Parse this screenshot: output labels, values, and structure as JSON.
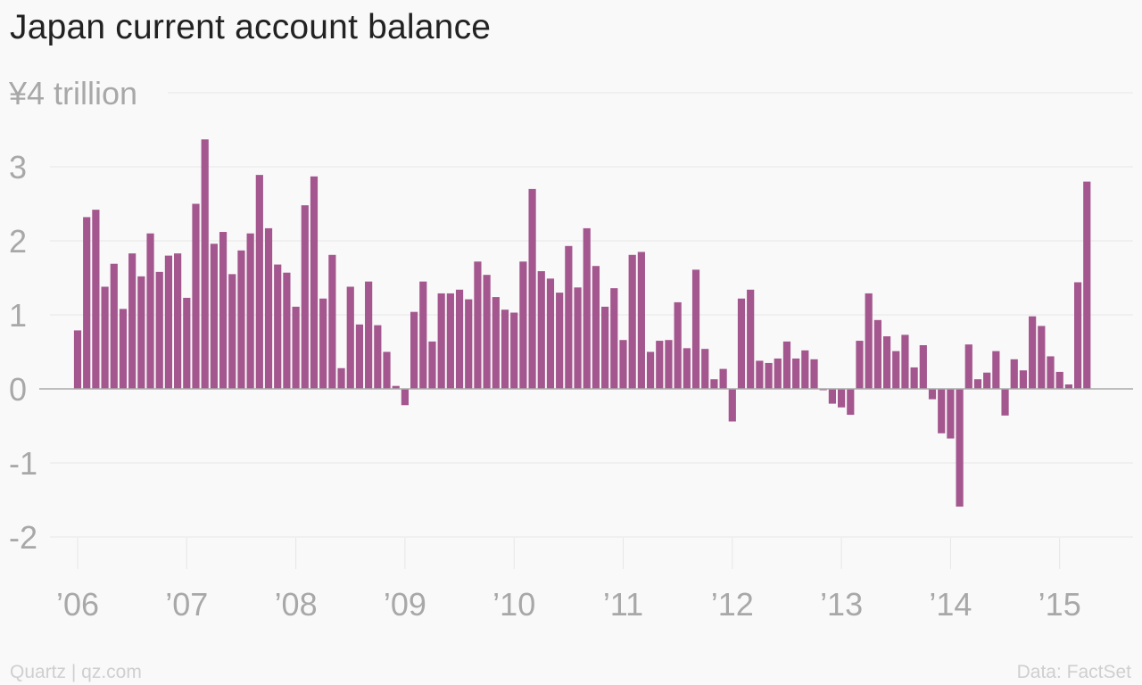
{
  "title": "Japan current account balance",
  "footer": {
    "source_left": "Quartz | qz.com",
    "source_right": "Data: FactSet"
  },
  "colors": {
    "bar": "#a4578e",
    "grid": "#e6e6e6",
    "zero_line": "#aaaaaa",
    "tick_text": "#a8a8a8",
    "title": "#222222",
    "background": "#f9f9f9"
  },
  "chart_data": {
    "type": "bar",
    "title": "Japan current account balance",
    "ylabel": "",
    "ylim": [
      -2.4,
      4
    ],
    "y_ticks": [
      4,
      3,
      2,
      1,
      0,
      -1,
      -2
    ],
    "y_tick_labels": [
      "¥4 trillion",
      "3",
      "2",
      "1",
      "0",
      "-1",
      "-2"
    ],
    "x_tick_labels": [
      "’06",
      "’07",
      "’08",
      "’09",
      "’10",
      "’11",
      "’12",
      "’13",
      "’14",
      "’15"
    ],
    "x_tick_years": [
      2006,
      2007,
      2008,
      2009,
      2010,
      2011,
      2012,
      2013,
      2014,
      2015
    ],
    "grid": true,
    "start": "2006-01",
    "frequency": "monthly",
    "series": [
      {
        "values": [
          0.79,
          2.32,
          2.42,
          1.38,
          1.69,
          1.08,
          1.83,
          1.52,
          2.1,
          1.58,
          1.8,
          1.83,
          1.23,
          2.5,
          3.37,
          1.96,
          2.12,
          1.55,
          1.87,
          2.1,
          2.89,
          2.17,
          1.68,
          1.57,
          1.11,
          2.48,
          2.87,
          1.22,
          1.81,
          0.28,
          1.38,
          0.87,
          1.45,
          0.86,
          0.5,
          0.04,
          -0.22,
          1.04,
          1.45,
          0.64,
          1.29,
          1.29,
          1.34,
          1.21,
          1.72,
          1.54,
          1.24,
          1.07,
          1.03,
          1.72,
          2.7,
          1.59,
          1.49,
          1.3,
          1.93,
          1.37,
          2.17,
          1.66,
          1.11,
          1.36,
          0.66,
          1.81,
          1.85,
          0.5,
          0.65,
          0.66,
          1.17,
          0.55,
          1.61,
          0.54,
          0.13,
          0.27,
          -0.44,
          1.22,
          1.34,
          0.38,
          0.35,
          0.41,
          0.64,
          0.41,
          0.52,
          0.4,
          0.0,
          -0.2,
          -0.25,
          -0.35,
          0.65,
          1.29,
          0.93,
          0.71,
          0.51,
          0.73,
          0.29,
          0.59,
          -0.14,
          -0.6,
          -0.67,
          -1.59,
          0.6,
          0.13,
          0.22,
          0.51,
          -0.36,
          0.4,
          0.25,
          0.98,
          0.85,
          0.44,
          0.23,
          0.06,
          1.44,
          2.8
        ]
      }
    ]
  }
}
